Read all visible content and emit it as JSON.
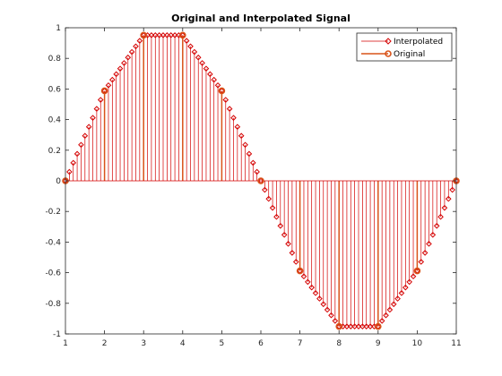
{
  "chart_data": {
    "type": "stem",
    "title": "Original and Interpolated Signal",
    "xlabel": "",
    "ylabel": "",
    "xlim": [
      1,
      11
    ],
    "ylim": [
      -1,
      1
    ],
    "xticks": [
      "1",
      "2",
      "3",
      "4",
      "5",
      "6",
      "7",
      "8",
      "9",
      "10",
      "11"
    ],
    "yticks": [
      "-1",
      "-0.8",
      "-0.6",
      "-0.4",
      "-0.2",
      "0",
      "0.2",
      "0.4",
      "0.6",
      "0.8",
      "1"
    ],
    "legend_position": "top-right",
    "series": [
      {
        "name": "Interpolated",
        "color": "#d40000",
        "marker": "diamond-open",
        "x_start": 1,
        "x_step": 0.1,
        "values": [
          0,
          0.0588,
          0.1176,
          0.1763,
          0.2351,
          0.2939,
          0.3527,
          0.4115,
          0.4702,
          0.529,
          0.5878,
          0.6241,
          0.6604,
          0.6967,
          0.733,
          0.7694,
          0.8057,
          0.842,
          0.8783,
          0.9146,
          0.9511,
          0.9511,
          0.9511,
          0.9511,
          0.9511,
          0.9511,
          0.9511,
          0.9511,
          0.9511,
          0.9511,
          0.9511,
          0.9146,
          0.8783,
          0.842,
          0.8057,
          0.7694,
          0.733,
          0.6967,
          0.6604,
          0.6241,
          0.5878,
          0.529,
          0.4702,
          0.4115,
          0.3527,
          0.2939,
          0.2351,
          0.1763,
          0.1176,
          0.0588,
          0,
          -0.0588,
          -0.1176,
          -0.1763,
          -0.2351,
          -0.2939,
          -0.3527,
          -0.4115,
          -0.4702,
          -0.529,
          -0.5878,
          -0.6241,
          -0.6604,
          -0.6967,
          -0.733,
          -0.7694,
          -0.8057,
          -0.842,
          -0.8783,
          -0.9146,
          -0.9511,
          -0.9511,
          -0.9511,
          -0.9511,
          -0.9511,
          -0.9511,
          -0.9511,
          -0.9511,
          -0.9511,
          -0.9511,
          -0.9511,
          -0.9146,
          -0.8783,
          -0.842,
          -0.8057,
          -0.7694,
          -0.733,
          -0.6967,
          -0.6604,
          -0.6241,
          -0.5878,
          -0.529,
          -0.4702,
          -0.4115,
          -0.3527,
          -0.2939,
          -0.2351,
          -0.1763,
          -0.1176,
          -0.0588,
          0
        ]
      },
      {
        "name": "Original",
        "color": "#d95319",
        "marker": "circle-open",
        "x": [
          1,
          2,
          3,
          4,
          5,
          6,
          7,
          8,
          9,
          10,
          11
        ],
        "values": [
          0,
          0.5878,
          0.9511,
          0.9511,
          0.5878,
          0,
          -0.5878,
          -0.9511,
          -0.9511,
          -0.5878,
          0
        ]
      }
    ]
  }
}
